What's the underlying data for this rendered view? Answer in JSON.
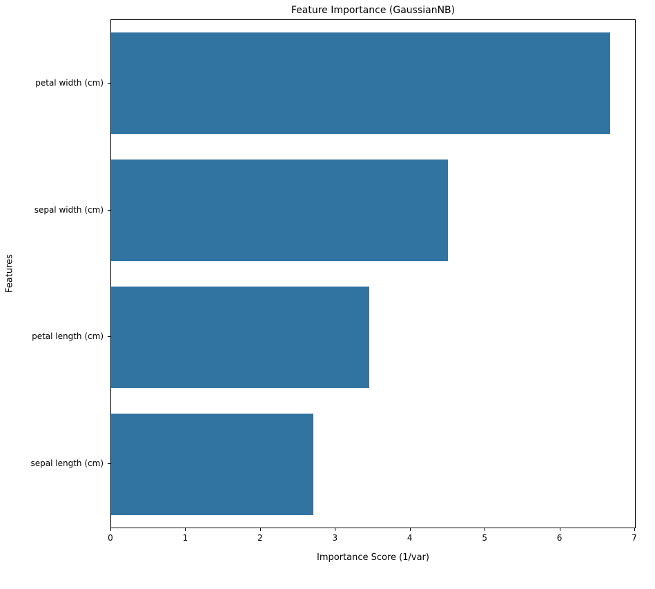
{
  "chart_data": {
    "type": "bar",
    "orientation": "horizontal",
    "title": "Feature Importance (GaussianNB)",
    "xlabel": "Importance Score (1/var)",
    "ylabel": "Features",
    "categories": [
      "petal width (cm)",
      "sepal width (cm)",
      "petal length (cm)",
      "sepal length (cm)"
    ],
    "values": [
      6.67,
      4.5,
      3.45,
      2.7
    ],
    "xlim": [
      0,
      7
    ],
    "xticks": [
      0,
      1,
      2,
      3,
      4,
      5,
      6,
      7
    ],
    "xtick_labels": [
      "0",
      "1",
      "2",
      "3",
      "4",
      "5",
      "6",
      "7"
    ],
    "bar_color": "#3274a1",
    "background_color": "#ffffff",
    "grid": false,
    "legend_position": "none",
    "bar_fraction_of_slot": 0.8
  }
}
